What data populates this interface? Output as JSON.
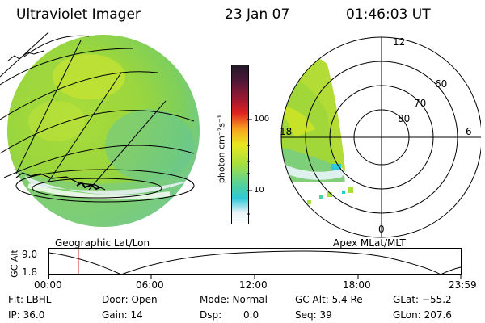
{
  "header": {
    "instrument": "Ultraviolet Imager",
    "date": "23 Jan 07",
    "time": "01:46:03 UT"
  },
  "colorbar": {
    "unit_label": "photon cm⁻²s⁻¹",
    "ticks": [
      "100",
      "10"
    ]
  },
  "polar_plot": {
    "lat_labels": [
      "60",
      "70",
      "80"
    ],
    "mlt_labels": [
      "12",
      "18",
      "6",
      "0"
    ]
  },
  "projection_labels": {
    "left": "Geographic Lat/Lon",
    "right": "Apex MLat/MLT"
  },
  "altitude_plot": {
    "axis_label": "GC Alt",
    "y_ticks": [
      "9.0",
      "1.8"
    ],
    "time_ticks": [
      "00:00",
      "06:00",
      "12:00",
      "18:00",
      "23:59"
    ]
  },
  "status": {
    "flt": "Flt: LBHL",
    "ip": "IP: 36.0",
    "door": "Door: Open",
    "gain": "Gain: 14",
    "mode": "Mode: Normal",
    "dsp_label": "Dsp:",
    "dsp_value": "0.0",
    "gc_alt": "GC Alt: 5.4 Re",
    "seq": "Seq: 39",
    "glat": "GLat: −55.2",
    "glon": "GLon: 207.6"
  },
  "colors": {
    "low": "#ffffff",
    "cyan": "#30c8d8",
    "green": "#a8e03c",
    "yellow": "#e8e820",
    "orange": "#f8a020",
    "red": "#e02020",
    "dark": "#201828",
    "marker": "#c03020"
  }
}
